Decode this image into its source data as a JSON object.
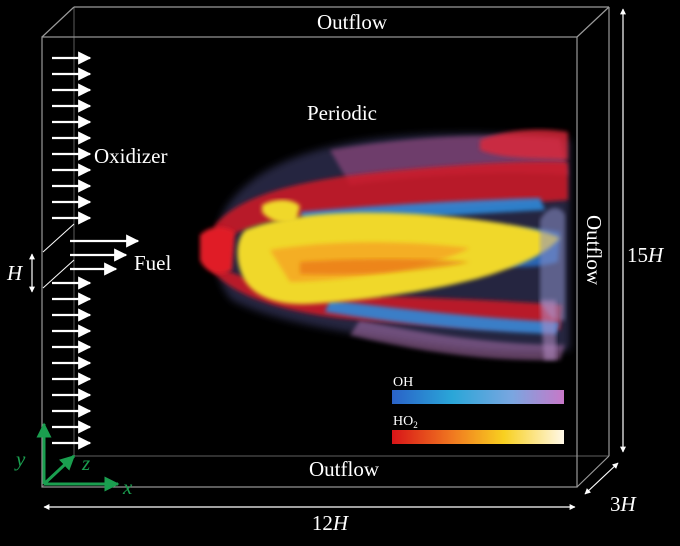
{
  "labels": {
    "outflow_top": "Outflow",
    "outflow_bottom": "Outflow",
    "outflow_right": "Outflow",
    "periodic": "Periodic",
    "oxidizer": "Oxidizer",
    "fuel": "Fuel",
    "h_var": "H",
    "dim_width_num": "12",
    "dim_width_var": "H",
    "dim_height_num": "15",
    "dim_height_var": "H",
    "dim_depth_num": "3",
    "dim_depth_var": "H"
  },
  "axes": {
    "x": "x",
    "y": "y",
    "z": "z",
    "color": "#1a9e4f",
    "x_color": "#1a9e4f"
  },
  "legend": {
    "oh_label": "OH",
    "ho2_label": "HO",
    "ho2_sub": "2",
    "oh_colors": [
      "#2a62c8",
      "#2aa6d8",
      "#7aa6e0",
      "#c878c8"
    ],
    "ho2_colors": [
      "#d81418",
      "#f07820",
      "#f8d020",
      "#fff8e8"
    ]
  },
  "colors": {
    "frame": "#9a9a9a",
    "flame_red": "#d21a24",
    "flame_blue": "#2c88d8",
    "flame_yellow": "#f0d82c"
  }
}
